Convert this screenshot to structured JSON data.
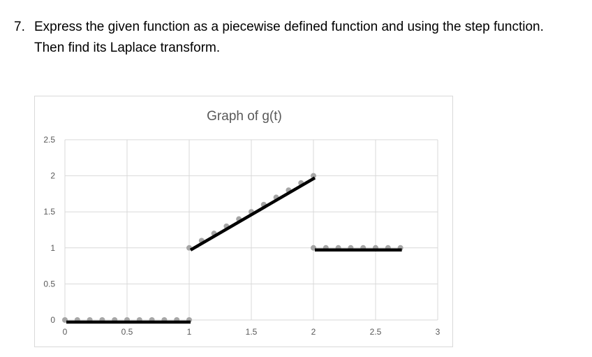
{
  "problem": {
    "number": "7.",
    "line1": "Express the given function as a piecewise defined function and using the step function.",
    "line2": "Then find its Laplace transform."
  },
  "chart_data": {
    "type": "scatter",
    "title": "Graph of g(t)",
    "xlabel": "",
    "ylabel": "",
    "xlim": [
      0,
      3
    ],
    "ylim": [
      0,
      2.5
    ],
    "x_ticks": [
      "0",
      "0.5",
      "1",
      "1.5",
      "2",
      "2.5",
      "3"
    ],
    "y_ticks": [
      "0",
      "0.5",
      "1",
      "1.5",
      "2",
      "2.5"
    ],
    "grid": true,
    "legend": "none",
    "colors": {
      "points": "#a6a6a6",
      "segments": "#000000",
      "grid": "#d9d9d9",
      "text": "#595959"
    },
    "points": [
      [
        0,
        0
      ],
      [
        0.1,
        0
      ],
      [
        0.2,
        0
      ],
      [
        0.3,
        0
      ],
      [
        0.4,
        0
      ],
      [
        0.5,
        0
      ],
      [
        0.6,
        0
      ],
      [
        0.7,
        0
      ],
      [
        0.8,
        0
      ],
      [
        0.9,
        0
      ],
      [
        1,
        0
      ],
      [
        1,
        1
      ],
      [
        1.1,
        1.1
      ],
      [
        1.2,
        1.2
      ],
      [
        1.3,
        1.3
      ],
      [
        1.4,
        1.4
      ],
      [
        1.5,
        1.5
      ],
      [
        1.6,
        1.6
      ],
      [
        1.7,
        1.7
      ],
      [
        1.8,
        1.8
      ],
      [
        1.9,
        1.9
      ],
      [
        2,
        2
      ],
      [
        2,
        1
      ],
      [
        2.1,
        1
      ],
      [
        2.2,
        1
      ],
      [
        2.3,
        1
      ],
      [
        2.4,
        1
      ],
      [
        2.5,
        1
      ],
      [
        2.6,
        1
      ],
      [
        2.7,
        1
      ]
    ],
    "segments": [
      {
        "from": [
          0,
          0
        ],
        "to": [
          1,
          0
        ]
      },
      {
        "from": [
          1,
          1
        ],
        "to": [
          2,
          2
        ]
      },
      {
        "from": [
          2,
          1
        ],
        "to": [
          2.7,
          1
        ]
      }
    ]
  }
}
